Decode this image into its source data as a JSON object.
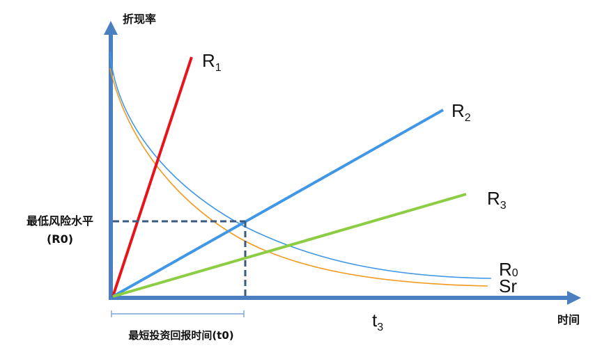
{
  "y_axis_label": "折现率",
  "x_axis_label": "时间",
  "min_risk_label_line1": "最低风险水平",
  "min_risk_label_line2": "(R0)",
  "payback_label": "最短投资回报时间(t0)",
  "t3": {
    "main": "t",
    "sub": "3"
  },
  "series": {
    "r1": {
      "main": "R",
      "sub": "1",
      "color": "#e8141b"
    },
    "r2": {
      "main": "R",
      "sub": "2",
      "color": "#3f97e6"
    },
    "r3": {
      "main": "R",
      "sub": "3",
      "color": "#8ccd44"
    },
    "r0": {
      "main": "R",
      "sub": "0",
      "color": "#3f97e6"
    },
    "sr": {
      "main": "Sr",
      "color": "#f39a1e"
    }
  },
  "colors": {
    "axis": "#4a7fc0",
    "dashed_guides": "#3a5a80",
    "bracket": "#7aa3d4"
  }
}
